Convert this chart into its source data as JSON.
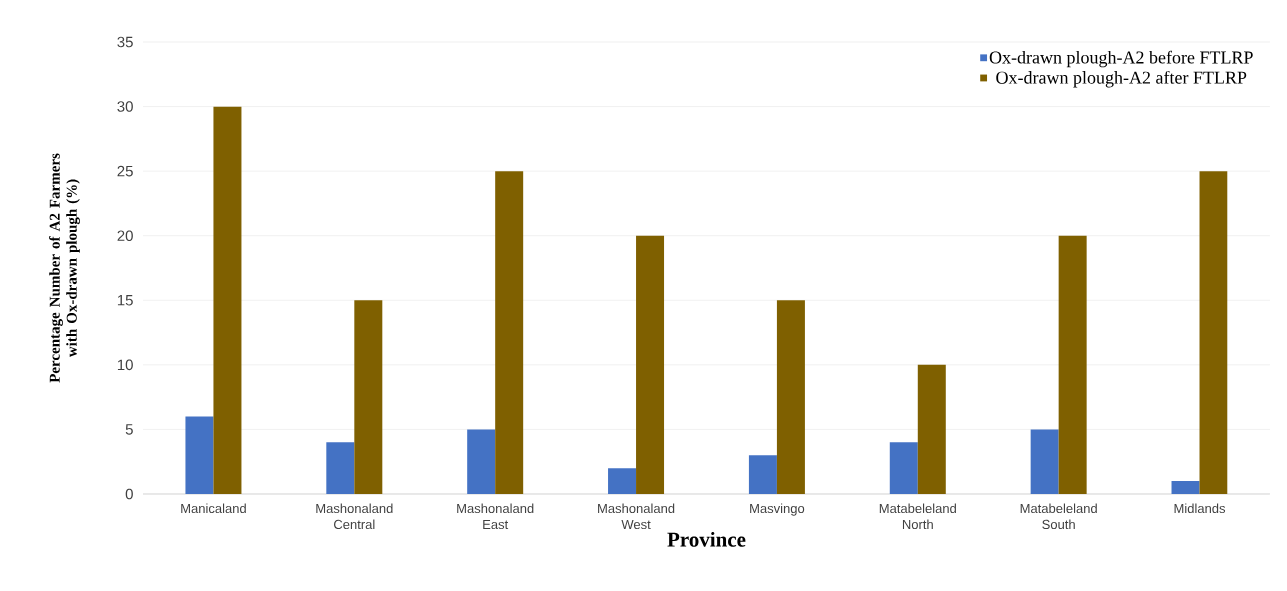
{
  "chart_data": {
    "type": "bar",
    "xlabel": "Province",
    "ylabel": "Percentage Number of A2 Farmers with Ox-drawn plough (%)",
    "categories": [
      "Manicaland",
      "Mashonaland Central",
      "Mashonaland East",
      "Mashonaland West",
      "Masvingo",
      "Matabeleland North",
      "Matabeleland South",
      "Midlands"
    ],
    "series": [
      {
        "name": "Ox-drawn plough-A2 before FTLRP",
        "color": "#4472c4",
        "values": [
          6,
          4,
          5,
          2,
          3,
          4,
          5,
          1
        ]
      },
      {
        "name": "Ox-drawn plough-A2 after FTLRP",
        "color": "#7f6000",
        "values": [
          30,
          15,
          25,
          20,
          15,
          10,
          20,
          25
        ]
      }
    ],
    "ylim": [
      0,
      35
    ],
    "yticks": [
      0,
      5,
      10,
      15,
      20,
      25,
      30,
      35
    ],
    "grid": "y",
    "legend": "top right"
  }
}
